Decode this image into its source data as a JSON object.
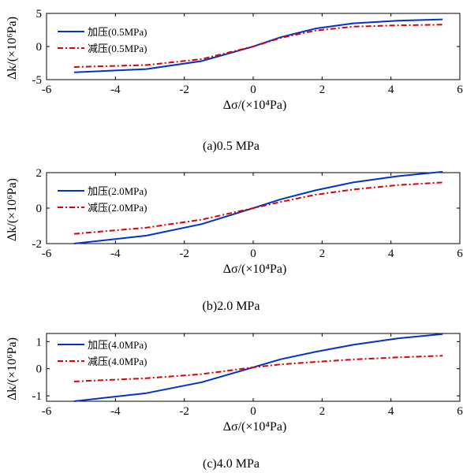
{
  "chart_data": [
    {
      "type": "line",
      "caption": "(a)0.5 MPa",
      "xlabel": "Δσ/(×10⁴Pa)",
      "ylabel": "Δk/(×10⁶Pa)",
      "xlim": [
        -6,
        6
      ],
      "ylim": [
        -5,
        5
      ],
      "xticks": [
        "-6",
        "-4",
        "-2",
        "0",
        "2",
        "4",
        "6"
      ],
      "yticks": [
        "-5",
        "0",
        "5"
      ],
      "legend_position": "top-left",
      "series": [
        {
          "name": "加压(0.5MPa)",
          "color": "#0033cc",
          "style": "solid",
          "x": [
            -5.2,
            -3.1,
            -1.5,
            0,
            0.8,
            1.8,
            2.9,
            4.2,
            5.5
          ],
          "y": [
            -3.9,
            -3.4,
            -2.2,
            0,
            1.4,
            2.7,
            3.5,
            3.9,
            4.1
          ]
        },
        {
          "name": "减压(0.5MPa)",
          "color": "#dd0000",
          "style": "dashdot",
          "x": [
            -5.2,
            -3.1,
            -1.5,
            0,
            0.8,
            1.8,
            2.9,
            4.2,
            5.5
          ],
          "y": [
            -3.1,
            -2.8,
            -1.9,
            0,
            1.3,
            2.4,
            3.0,
            3.2,
            3.3
          ]
        }
      ]
    },
    {
      "type": "line",
      "caption": "(b)2.0 MPa",
      "xlabel": "Δσ/(×10⁴Pa)",
      "ylabel": "Δk/(×10⁶Pa)",
      "xlim": [
        -6,
        6
      ],
      "ylim": [
        -2,
        2
      ],
      "xticks": [
        "-6",
        "-4",
        "-2",
        "0",
        "2",
        "4",
        "6"
      ],
      "yticks": [
        "-2",
        "0",
        "2"
      ],
      "legend_position": "top-left",
      "series": [
        {
          "name": "加压(2.0MPa)",
          "color": "#0033cc",
          "style": "solid",
          "x": [
            -5.2,
            -3.1,
            -1.5,
            0,
            0.8,
            1.8,
            2.9,
            4.2,
            5.5
          ],
          "y": [
            -2.0,
            -1.55,
            -0.9,
            0,
            0.5,
            1.0,
            1.45,
            1.8,
            2.05
          ]
        },
        {
          "name": "减压(2.0MPa)",
          "color": "#dd0000",
          "style": "dashdot",
          "x": [
            -5.2,
            -3.1,
            -1.5,
            0,
            0.8,
            1.8,
            2.9,
            4.2,
            5.5
          ],
          "y": [
            -1.45,
            -1.1,
            -0.65,
            0,
            0.35,
            0.75,
            1.05,
            1.3,
            1.45
          ]
        }
      ]
    },
    {
      "type": "line",
      "caption": "(c)4.0 MPa",
      "xlabel": "Δσ/(×10⁴Pa)",
      "ylabel": "Δk/(×10⁶Pa)",
      "xlim": [
        -6,
        6
      ],
      "ylim": [
        -1.2,
        1.3
      ],
      "xticks": [
        "-6",
        "-4",
        "-2",
        "0",
        "2",
        "4",
        "6"
      ],
      "yticks": [
        "-1",
        "0",
        "1"
      ],
      "legend_position": "top-left",
      "series": [
        {
          "name": "加压(4.0MPa)",
          "color": "#0033cc",
          "style": "solid",
          "x": [
            -5.2,
            -3.1,
            -1.5,
            0,
            0.8,
            1.8,
            2.9,
            4.2,
            5.5
          ],
          "y": [
            -1.2,
            -0.9,
            -0.5,
            0.05,
            0.35,
            0.62,
            0.88,
            1.12,
            1.28
          ]
        },
        {
          "name": "减压(4.0MPa)",
          "color": "#dd0000",
          "style": "dashdot",
          "x": [
            -5.2,
            -3.1,
            -1.5,
            0,
            0.8,
            1.8,
            2.9,
            4.2,
            5.5
          ],
          "y": [
            -0.47,
            -0.35,
            -0.2,
            0.05,
            0.16,
            0.25,
            0.34,
            0.42,
            0.48
          ]
        }
      ]
    }
  ]
}
